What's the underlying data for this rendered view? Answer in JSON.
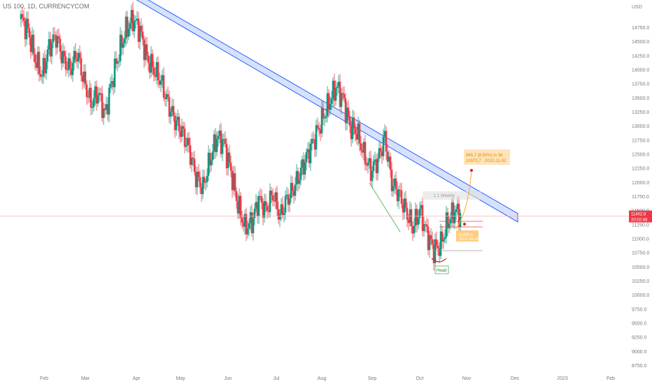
{
  "header": {
    "symbol": "US 100, 1D, CURRENCYCOM"
  },
  "chart_data": {
    "type": "candlestick",
    "currency": "USD",
    "y_ticks": [
      8750,
      9000,
      9250,
      9500,
      9750,
      10000,
      10250,
      10500,
      10750,
      11000,
      11250,
      11500,
      11750,
      12000,
      12250,
      12500,
      12750,
      13000,
      13250,
      13500,
      13750,
      14000,
      14250,
      14500,
      14750
    ],
    "y_tick_labels": [
      "8750.0",
      "9000.0",
      "9250.0",
      "9500.0",
      "9750.0",
      "10000.0",
      "10250.0",
      "10500.0",
      "10750.0",
      "11000.0",
      "11250.0",
      "11500.0",
      "11750.0",
      "12000.0",
      "12250.0",
      "12500.0",
      "12750.0",
      "13000.0",
      "13250.0",
      "13500.0",
      "13750.0",
      "14000.0",
      "14250.0",
      "14500.0",
      "14750.0"
    ],
    "ylim": [
      8620,
      15240
    ],
    "x_labels": [
      "Feb",
      "Mar",
      "Apr",
      "May",
      "Jun",
      "Jul",
      "Aug",
      "Sep",
      "Oct",
      "Nov",
      "Dec",
      "2023",
      "Feb"
    ],
    "current_price": {
      "value": "11402.8",
      "countdown": "20:02:48",
      "color": "#f23645"
    },
    "price_path": [
      [
        0,
        14900
      ],
      [
        5,
        14700
      ],
      [
        10,
        14200
      ],
      [
        15,
        13900
      ],
      [
        20,
        14400
      ],
      [
        25,
        14600
      ],
      [
        30,
        14200
      ],
      [
        35,
        14000
      ],
      [
        40,
        14300
      ],
      [
        45,
        13800
      ],
      [
        50,
        13400
      ],
      [
        55,
        13600
      ],
      [
        60,
        13200
      ],
      [
        65,
        13800
      ],
      [
        70,
        14300
      ],
      [
        75,
        14700
      ],
      [
        80,
        14900
      ],
      [
        85,
        14700
      ],
      [
        90,
        14200
      ],
      [
        95,
        14000
      ],
      [
        100,
        13800
      ],
      [
        105,
        13400
      ],
      [
        110,
        13100
      ],
      [
        115,
        12900
      ],
      [
        120,
        12600
      ],
      [
        125,
        12100
      ],
      [
        130,
        11900
      ],
      [
        135,
        12400
      ],
      [
        140,
        12800
      ],
      [
        145,
        12700
      ],
      [
        150,
        12200
      ],
      [
        155,
        11600
      ],
      [
        160,
        11200
      ],
      [
        165,
        11300
      ],
      [
        170,
        11700
      ],
      [
        175,
        11500
      ],
      [
        180,
        11800
      ],
      [
        185,
        11400
      ],
      [
        190,
        11700
      ],
      [
        195,
        11900
      ],
      [
        200,
        12200
      ],
      [
        205,
        12500
      ],
      [
        210,
        12800
      ],
      [
        215,
        13100
      ],
      [
        220,
        13400
      ],
      [
        225,
        13700
      ],
      [
        230,
        13500
      ],
      [
        235,
        13000
      ],
      [
        240,
        12900
      ],
      [
        245,
        12500
      ],
      [
        250,
        12200
      ],
      [
        255,
        12400
      ],
      [
        260,
        12800
      ],
      [
        265,
        12000
      ],
      [
        270,
        11800
      ],
      [
        275,
        11500
      ],
      [
        280,
        11200
      ],
      [
        285,
        11500
      ],
      [
        290,
        11100
      ],
      [
        295,
        10800
      ],
      [
        300,
        10900
      ],
      [
        305,
        11300
      ],
      [
        310,
        11500
      ],
      [
        315,
        11400
      ]
    ],
    "channel": {
      "color": "#2962ff",
      "upper": [
        [
          80,
          15400
        ],
        [
          355,
          11450
        ]
      ],
      "lower": [
        [
          80,
          15280
        ],
        [
          355,
          11300
        ]
      ]
    },
    "projection": {
      "label": "945.7 (8.50%) in 3d",
      "sublabel": "10073.7 · 2022-11-02",
      "target": 12050
    },
    "box_label": "1.1 Weekly",
    "left_label": "11402.0",
    "left_sublabel": "2022-10-29",
    "annotation": "Head"
  }
}
